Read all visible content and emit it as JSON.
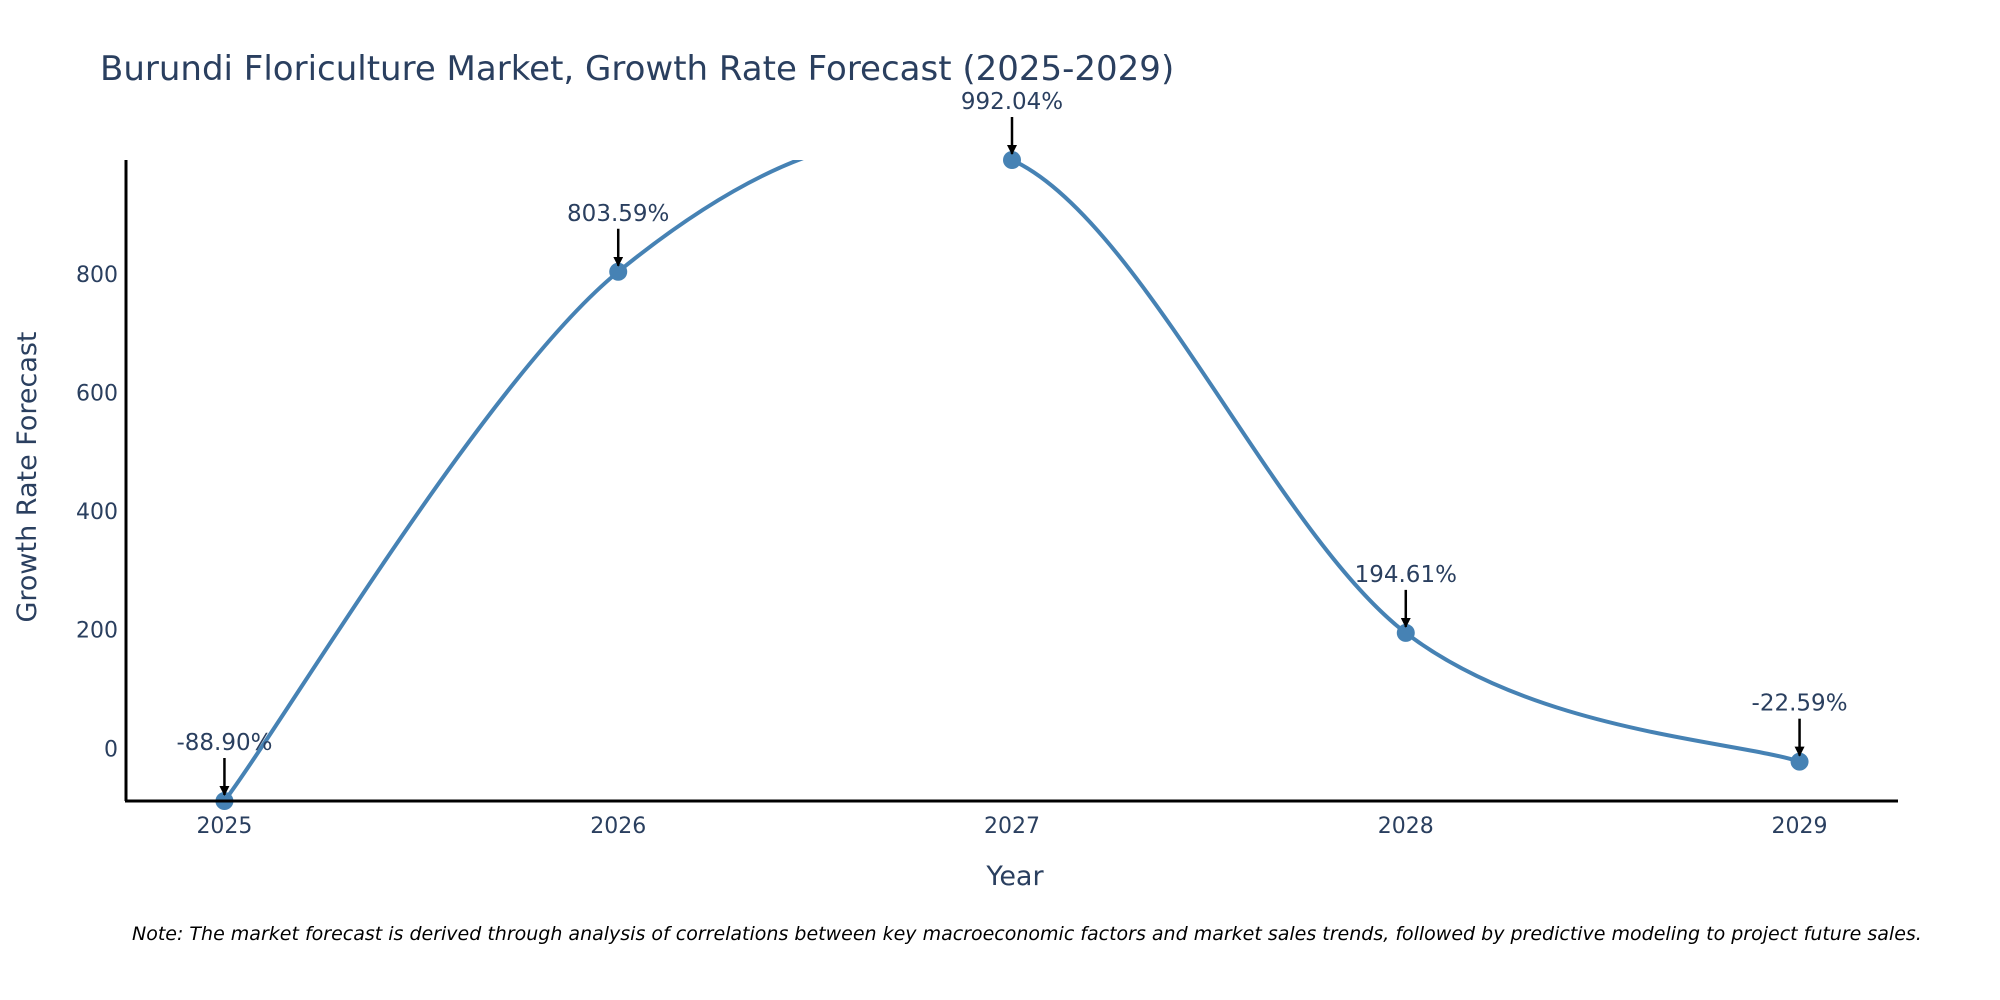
{
  "chart_data": {
    "type": "line",
    "title": "Burundi Floriculture Market, Growth Rate Forecast (2025-2029)",
    "xlabel": "Year",
    "ylabel": "Growth Rate Forecast",
    "categories": [
      "2025",
      "2026",
      "2027",
      "2028",
      "2029"
    ],
    "series": [
      {
        "name": "Growth Rate Forecast",
        "values": [
          -88.9,
          803.59,
          992.04,
          194.61,
          -22.59
        ],
        "labels": [
          "-88.90%",
          "803.59%",
          "992.04%",
          "194.61%",
          "-22.59%"
        ]
      }
    ],
    "yticks": [
      0,
      200,
      400,
      600,
      800
    ],
    "ylim": [
      -88.9,
      992.04
    ],
    "xlim": [
      2024.75,
      2029.25
    ],
    "grid": false,
    "line_color": "#4682b4",
    "axis_color": "#000000",
    "text_color": "#2a3f5f",
    "note": "Note: The market forecast is derived through analysis of correlations between key macroeconomic factors and market sales trends, followed by predictive modeling to project future sales."
  }
}
